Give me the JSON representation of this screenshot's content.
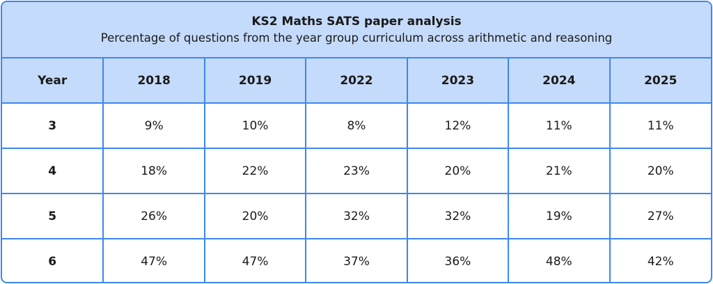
{
  "title": "KS2 Maths SATS paper analysis",
  "subtitle": "Percentage of questions from the year group curriculum across arithmetic and reasoning",
  "headers": [
    "Year",
    "2018",
    "2019",
    "2022",
    "2023",
    "2024",
    "2025"
  ],
  "rows": [
    [
      "3",
      "9%",
      "10%",
      "8%",
      "12%",
      "11%",
      "11%"
    ],
    [
      "4",
      "18%",
      "22%",
      "23%",
      "20%",
      "21%",
      "20%"
    ],
    [
      "5",
      "26%",
      "20%",
      "32%",
      "32%",
      "19%",
      "27%"
    ],
    [
      "6",
      "47%",
      "47%",
      "37%",
      "36%",
      "48%",
      "42%"
    ]
  ],
  "colors": {
    "border": "#3d86ee",
    "header_fill": "#c5dbfb"
  }
}
